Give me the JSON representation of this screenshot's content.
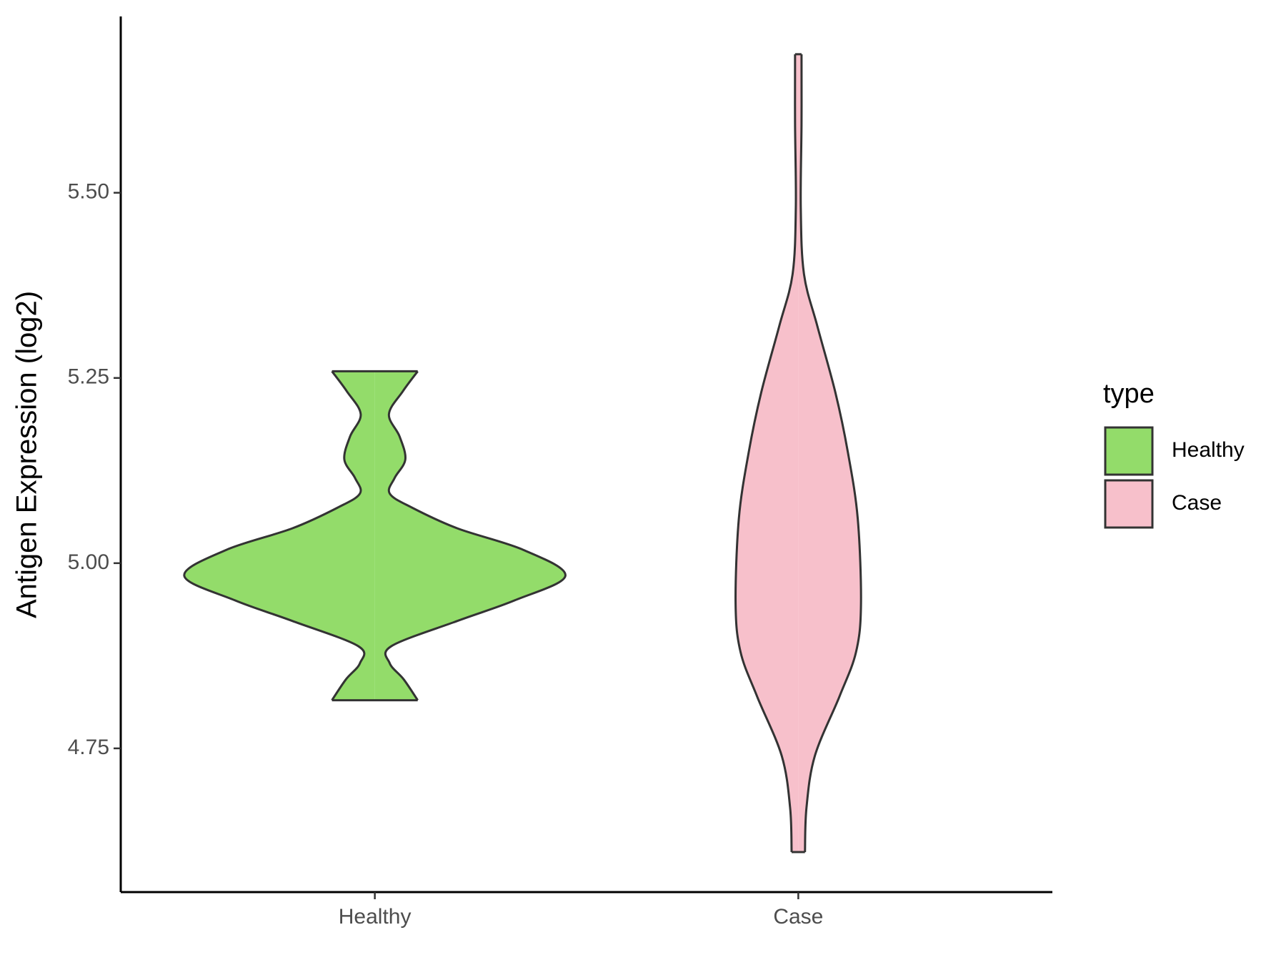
{
  "chart_data": {
    "type": "violin",
    "y_label": "Antigen Expression (log2)",
    "categories": [
      "Healthy",
      "Case"
    ],
    "legend_title": "type",
    "series": [
      {
        "name": "Healthy",
        "color": "#93dc6a",
        "y": [
          5.259,
          5.232,
          5.201,
          5.171,
          5.14,
          5.115,
          5.094,
          5.075,
          5.047,
          5.018,
          4.983,
          4.95,
          4.922,
          4.888,
          4.865,
          4.843,
          4.815
        ],
        "density": [
          0.225,
          0.147,
          0.074,
          0.13,
          0.16,
          0.104,
          0.078,
          0.195,
          0.433,
          0.779,
          1.0,
          0.736,
          0.433,
          0.087,
          0.078,
          0.152,
          0.225
        ]
      },
      {
        "name": "Case",
        "color": "#f7c0cb",
        "y": [
          5.687,
          5.594,
          5.48,
          5.39,
          5.32,
          5.23,
          5.15,
          5.06,
          4.945,
          4.88,
          4.82,
          4.74,
          4.67,
          4.61
        ],
        "density": [
          0.017,
          0.017,
          0.013,
          0.03,
          0.1,
          0.195,
          0.26,
          0.312,
          0.329,
          0.303,
          0.216,
          0.087,
          0.043,
          0.035
        ]
      }
    ],
    "ylim": [
      4.556,
      5.738
    ],
    "yticks": [
      {
        "value": 4.75,
        "label": "4.75"
      },
      {
        "value": 5.0,
        "label": "5.00"
      },
      {
        "value": 5.25,
        "label": "5.25"
      },
      {
        "value": 5.5,
        "label": "5.50"
      }
    ]
  }
}
